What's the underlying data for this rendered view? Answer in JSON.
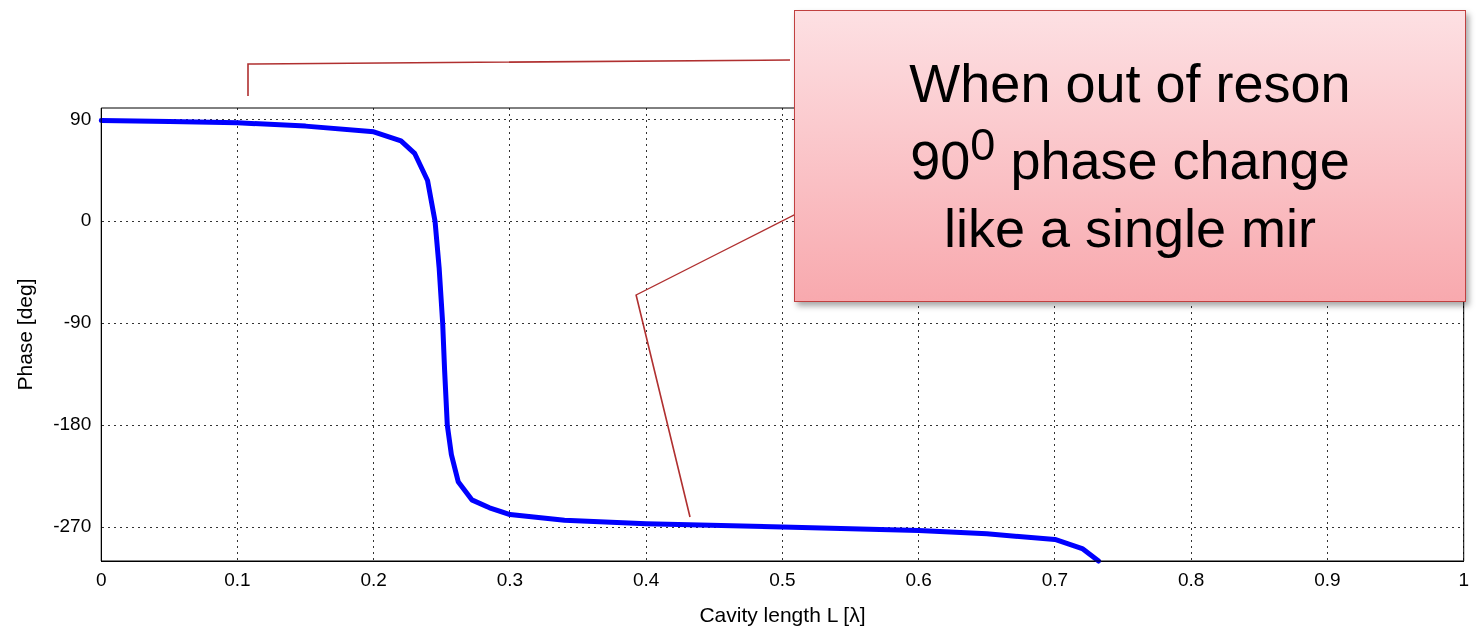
{
  "chart_data": {
    "type": "line",
    "xlabel": "Cavity length L [λ]",
    "ylabel": "Phase [deg]",
    "x": [
      0,
      0.05,
      0.1,
      0.15,
      0.2,
      0.22,
      0.23,
      0.2395,
      0.245,
      0.248,
      0.2506,
      0.252,
      0.254,
      0.257,
      0.262,
      0.272,
      0.285,
      0.3,
      0.34,
      0.4,
      0.5,
      0.6,
      0.65,
      0.7,
      0.72,
      0.732
    ],
    "series": [
      {
        "color": "#0000ff",
        "values": [
          89,
          88,
          87,
          84,
          79,
          71,
          60,
          36,
          0,
          -41,
          -90,
          -131,
          -180,
          -206,
          -230,
          -246,
          -253,
          -259,
          -264,
          -267,
          -270,
          -273,
          -276,
          -281,
          -289,
          -300
        ]
      }
    ],
    "xlim": [
      0,
      1
    ],
    "xticks": [
      0,
      0.1,
      0.2,
      0.3,
      0.4,
      0.5,
      0.6,
      0.7,
      0.8,
      0.9,
      1
    ],
    "ylim": [
      -300,
      100
    ],
    "yticks": [
      -270,
      -180,
      -90,
      0,
      90
    ],
    "grid": true,
    "marker": "none",
    "line_style": "solid",
    "annotations": [
      "When out of reson\n90$^{0}$ phase change\nlike a single mir"
    ]
  }
}
